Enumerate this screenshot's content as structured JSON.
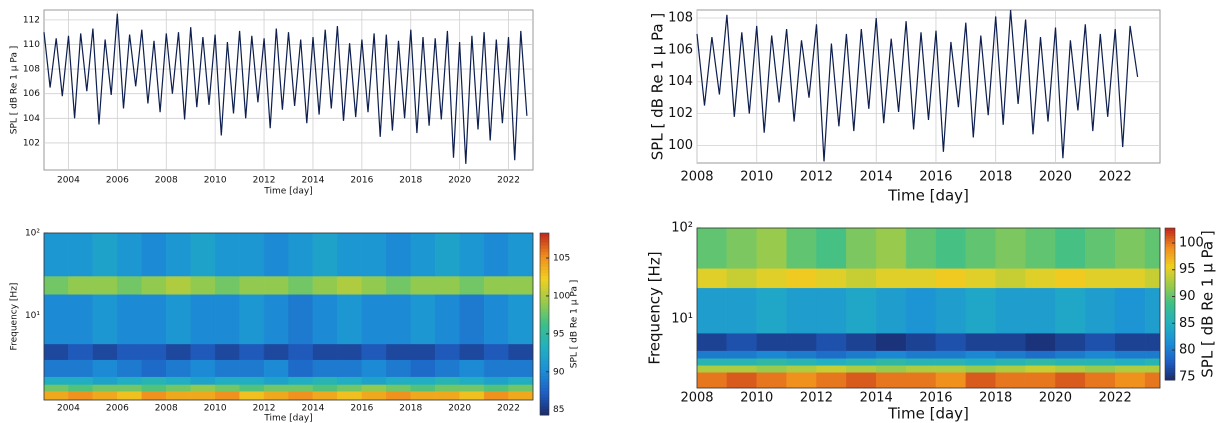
{
  "chart_data": [
    {
      "type": "line",
      "xlabel": "Time [day]",
      "ylabel": "SPL [ dB Re 1 μ Pa ]",
      "color": "#0d1e4f",
      "grid": true,
      "xlim": [
        2003,
        2023
      ],
      "xticks": [
        2004,
        2006,
        2008,
        2010,
        2012,
        2014,
        2016,
        2018,
        2020,
        2022
      ],
      "ylim": [
        99.8,
        112.8
      ],
      "yticks": [
        102,
        104,
        106,
        108,
        110,
        112
      ],
      "x": [
        2003,
        2003.25,
        2003.5,
        2003.75,
        2004,
        2004.25,
        2004.5,
        2004.75,
        2005,
        2005.25,
        2005.5,
        2005.75,
        2006,
        2006.25,
        2006.5,
        2006.75,
        2007,
        2007.25,
        2007.5,
        2007.75,
        2008,
        2008.25,
        2008.5,
        2008.75,
        2009,
        2009.25,
        2009.5,
        2009.75,
        2010,
        2010.25,
        2010.5,
        2010.75,
        2011,
        2011.25,
        2011.5,
        2011.75,
        2012,
        2012.25,
        2012.5,
        2012.75,
        2013,
        2013.25,
        2013.5,
        2013.75,
        2014,
        2014.25,
        2014.5,
        2014.75,
        2015,
        2015.25,
        2015.5,
        2015.75,
        2016,
        2016.25,
        2016.5,
        2016.75,
        2017,
        2017.25,
        2017.5,
        2017.75,
        2018,
        2018.25,
        2018.5,
        2018.75,
        2019,
        2019.25,
        2019.5,
        2019.75,
        2020,
        2020.25,
        2020.5,
        2020.75,
        2021,
        2021.25,
        2021.5,
        2021.75,
        2022,
        2022.25,
        2022.5,
        2022.75
      ],
      "values": [
        111.0,
        106.5,
        110.5,
        105.8,
        110.7,
        104.0,
        110.9,
        106.2,
        111.3,
        103.5,
        110.4,
        105.9,
        112.5,
        104.8,
        110.8,
        106.6,
        111.2,
        105.2,
        110.3,
        104.5,
        110.9,
        106.0,
        111.0,
        103.9,
        111.4,
        104.9,
        110.6,
        105.1,
        110.8,
        102.6,
        110.2,
        104.4,
        111.1,
        104.0,
        110.7,
        105.3,
        110.5,
        103.2,
        111.3,
        104.7,
        111.0,
        105.0,
        110.4,
        103.6,
        110.6,
        104.3,
        111.2,
        104.8,
        111.5,
        103.8,
        110.1,
        104.1,
        110.4,
        104.5,
        110.9,
        102.5,
        110.8,
        103.0,
        110.3,
        104.0,
        111.2,
        102.8,
        110.6,
        103.4,
        110.5,
        103.9,
        111.1,
        100.8,
        110.2,
        100.3,
        110.7,
        103.1,
        111.0,
        102.2,
        110.4,
        103.6,
        110.6,
        100.6,
        111.1,
        104.2
      ]
    },
    {
      "type": "line",
      "xlabel": "Time [day]",
      "ylabel": "SPL [ dB Re 1 μ Pa ]",
      "color": "#0d1e4f",
      "grid": true,
      "xlim": [
        2008,
        2023.5
      ],
      "xticks": [
        2008,
        2010,
        2012,
        2014,
        2016,
        2018,
        2020,
        2022
      ],
      "ylim": [
        98.9,
        108.5
      ],
      "yticks": [
        100,
        102,
        104,
        106,
        108
      ],
      "x": [
        2008,
        2008.25,
        2008.5,
        2008.75,
        2009,
        2009.25,
        2009.5,
        2009.75,
        2010,
        2010.25,
        2010.5,
        2010.75,
        2011,
        2011.25,
        2011.5,
        2011.75,
        2012,
        2012.25,
        2012.5,
        2012.75,
        2013,
        2013.25,
        2013.5,
        2013.75,
        2014,
        2014.25,
        2014.5,
        2014.75,
        2015,
        2015.25,
        2015.5,
        2015.75,
        2016,
        2016.25,
        2016.5,
        2016.75,
        2017,
        2017.25,
        2017.5,
        2017.75,
        2018,
        2018.25,
        2018.5,
        2018.75,
        2019,
        2019.25,
        2019.5,
        2019.75,
        2020,
        2020.25,
        2020.5,
        2020.75,
        2021,
        2021.25,
        2021.5,
        2021.75,
        2022,
        2022.25,
        2022.5,
        2022.75
      ],
      "values": [
        107.0,
        102.5,
        106.8,
        103.2,
        108.2,
        101.8,
        107.1,
        102.0,
        107.5,
        100.8,
        106.9,
        102.7,
        107.3,
        101.5,
        106.6,
        103.0,
        107.6,
        99.0,
        106.4,
        101.2,
        107.0,
        100.9,
        107.3,
        102.3,
        108.0,
        101.4,
        106.7,
        102.1,
        107.8,
        101.0,
        107.1,
        101.6,
        107.2,
        99.6,
        106.5,
        102.4,
        107.7,
        100.5,
        106.9,
        101.9,
        108.1,
        101.3,
        108.5,
        102.6,
        107.9,
        100.7,
        106.8,
        101.5,
        107.4,
        99.2,
        106.6,
        102.2,
        107.6,
        100.9,
        107.0,
        101.8,
        107.3,
        99.9,
        107.5,
        104.3
      ]
    },
    {
      "type": "heatmap",
      "xlabel": "Time [day]",
      "ylabel": "Frequency [Hz]",
      "log_y": true,
      "xlim": [
        2003,
        2023
      ],
      "xticks": [
        2004,
        2006,
        2008,
        2010,
        2012,
        2014,
        2016,
        2018,
        2020,
        2022
      ],
      "ylim": [
        0.94,
        100
      ],
      "yticks": [
        {
          "value": 10,
          "label": "10¹"
        },
        {
          "value": 100,
          "label": "10²"
        }
      ],
      "xbins": [
        2003,
        2004,
        2005,
        2006,
        2007,
        2008,
        2009,
        2010,
        2011,
        2012,
        2013,
        2014,
        2015,
        2016,
        2017,
        2018,
        2019,
        2020,
        2021,
        2022,
        2023
      ],
      "ybins": [
        0.94,
        1.2,
        1.45,
        1.8,
        2.9,
        4.5,
        18,
        30,
        100
      ],
      "values": [
        [
          104,
          105,
          104,
          103,
          105,
          104,
          104,
          105,
          103,
          104,
          105,
          104,
          103,
          104,
          105,
          104,
          104,
          103,
          105,
          104
        ],
        [
          98,
          97,
          98,
          98,
          97,
          98,
          99,
          98,
          97,
          98,
          98,
          97,
          98,
          99,
          98,
          97,
          98,
          98,
          97,
          98
        ],
        [
          93,
          93,
          92,
          93,
          94,
          93,
          92,
          93,
          93,
          92,
          93,
          94,
          93,
          92,
          93,
          93,
          94,
          93,
          92,
          93
        ],
        [
          89,
          89,
          90,
          89,
          88,
          89,
          90,
          89,
          89,
          90,
          88,
          89,
          89,
          90,
          89,
          88,
          89,
          90,
          89,
          89
        ],
        [
          86,
          87,
          86,
          87,
          87,
          86,
          87,
          86,
          87,
          86,
          87,
          86,
          86,
          87,
          86,
          86,
          87,
          86,
          87,
          86
        ],
        [
          90,
          90,
          91,
          90,
          90,
          91,
          90,
          90,
          91,
          90,
          89,
          90,
          91,
          90,
          90,
          91,
          90,
          89,
          90,
          91
        ],
        [
          98,
          99,
          99,
          98,
          99,
          100,
          99,
          98,
          99,
          99,
          98,
          99,
          100,
          99,
          98,
          99,
          99,
          98,
          99,
          99
        ],
        [
          91,
          91,
          92,
          91,
          90,
          91,
          92,
          91,
          91,
          90,
          91,
          92,
          91,
          91,
          90,
          91,
          92,
          91,
          90,
          91
        ]
      ],
      "colormap": [
        "#1a2a6c",
        "#1f5fc4",
        "#1c8fd6",
        "#22b0c0",
        "#3cbf8a",
        "#9bcb4a",
        "#f0d020",
        "#f08c1e",
        "#c0281c"
      ],
      "clim": [
        84.3,
        108.3
      ],
      "cticks": [
        85,
        90,
        95,
        100,
        105
      ],
      "colorbar_label": "SPL [ dB Re 1 μ Pa ]"
    },
    {
      "type": "heatmap",
      "xlabel": "Time [day]",
      "ylabel": "Frequency [Hz]",
      "log_y": true,
      "xlim": [
        2008,
        2023.5
      ],
      "xticks": [
        2008,
        2010,
        2012,
        2014,
        2016,
        2018,
        2020,
        2022
      ],
      "ylim": [
        1.75,
        100
      ],
      "yticks": [
        {
          "value": 10,
          "label": "10¹"
        },
        {
          "value": 100,
          "label": "10²"
        }
      ],
      "xbins": [
        2008,
        2009,
        2010,
        2011,
        2012,
        2013,
        2014,
        2015,
        2016,
        2017,
        2018,
        2019,
        2020,
        2021,
        2022,
        2023,
        2023.5
      ],
      "ybins": [
        1.75,
        2.6,
        3.1,
        3.7,
        4.5,
        7,
        22,
        36,
        100
      ],
      "values": [
        [
          100,
          101,
          100,
          99,
          100,
          101,
          100,
          100,
          99,
          101,
          100,
          100,
          101,
          100,
          99,
          100
        ],
        [
          93,
          93,
          92,
          93,
          94,
          93,
          92,
          93,
          93,
          92,
          93,
          94,
          93,
          92,
          93,
          93
        ],
        [
          86,
          86,
          87,
          86,
          85,
          86,
          87,
          86,
          86,
          85,
          86,
          87,
          86,
          86,
          85,
          86
        ],
        [
          80,
          80,
          81,
          80,
          79,
          80,
          81,
          80,
          80,
          81,
          80,
          79,
          80,
          81,
          80,
          80
        ],
        [
          76,
          77,
          76,
          76,
          77,
          76,
          75,
          76,
          77,
          76,
          76,
          75,
          76,
          77,
          76,
          76
        ],
        [
          83,
          83,
          84,
          83,
          83,
          84,
          83,
          82,
          83,
          84,
          83,
          83,
          84,
          83,
          82,
          83
        ],
        [
          95,
          94,
          95,
          96,
          95,
          94,
          95,
          95,
          96,
          95,
          94,
          95,
          96,
          95,
          95,
          94
        ],
        [
          90,
          91,
          92,
          90,
          89,
          91,
          92,
          90,
          89,
          90,
          91,
          90,
          89,
          90,
          91,
          90
        ]
      ],
      "colormap": [
        "#1a2a6c",
        "#1f5fc4",
        "#1c8fd6",
        "#22b0c0",
        "#3cbf8a",
        "#9bcb4a",
        "#f0d020",
        "#f08c1e",
        "#c0281c"
      ],
      "clim": [
        74.4,
        102.8
      ],
      "cticks": [
        75,
        80,
        85,
        90,
        95,
        100
      ],
      "colorbar_label": "SPL [ dB Re 1 μ Pa ]"
    }
  ]
}
